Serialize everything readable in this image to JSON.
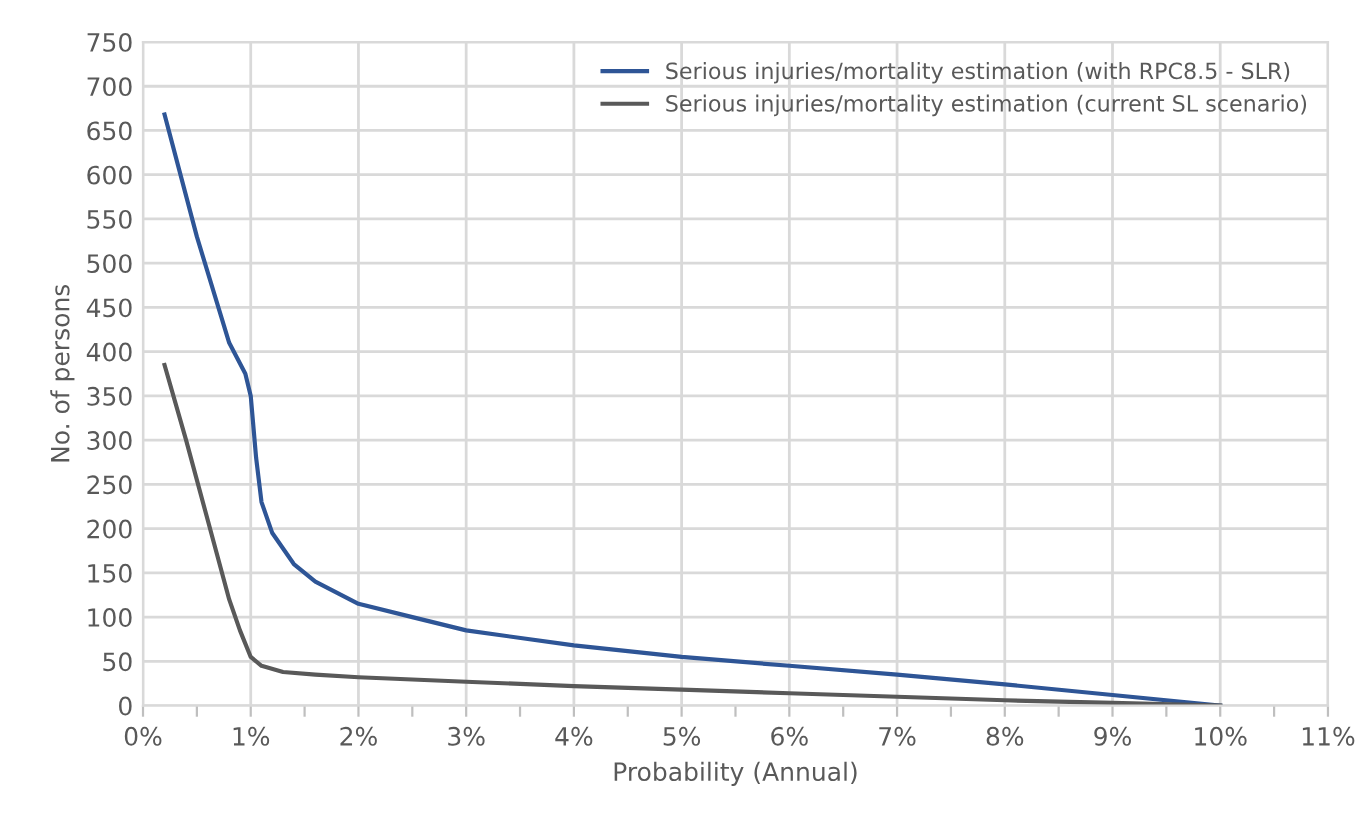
{
  "chart_data": {
    "type": "line",
    "xlabel": "Probability (Annual)",
    "ylabel": "No. of persons",
    "xlim": [
      0,
      11
    ],
    "ylim": [
      0,
      750
    ],
    "xticks": [
      {
        "value": 0,
        "label": "0%"
      },
      {
        "value": 0.5,
        "label": null
      },
      {
        "value": 1,
        "label": "1%"
      },
      {
        "value": 1.5,
        "label": null
      },
      {
        "value": 2,
        "label": "2%"
      },
      {
        "value": 2.5,
        "label": null
      },
      {
        "value": 3,
        "label": "3%"
      },
      {
        "value": 3.5,
        "label": null
      },
      {
        "value": 4,
        "label": "4%"
      },
      {
        "value": 4.5,
        "label": null
      },
      {
        "value": 5,
        "label": "5%"
      },
      {
        "value": 5.5,
        "label": null
      },
      {
        "value": 6,
        "label": "6%"
      },
      {
        "value": 6.5,
        "label": null
      },
      {
        "value": 7,
        "label": "7%"
      },
      {
        "value": 7.5,
        "label": null
      },
      {
        "value": 8,
        "label": "8%"
      },
      {
        "value": 8.5,
        "label": null
      },
      {
        "value": 9,
        "label": "9%"
      },
      {
        "value": 9.5,
        "label": null
      },
      {
        "value": 10,
        "label": "10%"
      },
      {
        "value": 10.5,
        "label": null
      },
      {
        "value": 11,
        "label": "11%"
      }
    ],
    "yticks": [
      0,
      50,
      100,
      150,
      200,
      250,
      300,
      350,
      400,
      450,
      500,
      550,
      600,
      650,
      700,
      750
    ],
    "grid": true,
    "legend": "top right",
    "marker": "none",
    "line_style": "solid",
    "series": [
      {
        "name": "Serious injuries/mortality estimation (with RPC8.5 - SLR)",
        "color": "#2e5596",
        "x": [
          0.2,
          0.5,
          0.8,
          0.95,
          1.0,
          1.05,
          1.1,
          1.2,
          1.4,
          1.6,
          2,
          2.5,
          3,
          4,
          5,
          6,
          7,
          8,
          9,
          10
        ],
        "values": [
          668,
          530,
          410,
          375,
          350,
          280,
          230,
          195,
          160,
          140,
          115,
          100,
          85,
          68,
          55,
          45,
          35,
          24,
          12,
          0
        ]
      },
      {
        "name": "Serious injuries/mortality estimation (current SL scenario)",
        "color": "#595959",
        "x": [
          0.2,
          0.4,
          0.6,
          0.8,
          0.9,
          1.0,
          1.1,
          1.3,
          1.6,
          2,
          3,
          4,
          5,
          6,
          7,
          8,
          9,
          10
        ],
        "values": [
          385,
          300,
          210,
          120,
          85,
          55,
          45,
          38,
          35,
          32,
          27,
          22,
          18,
          14,
          10,
          6,
          3,
          0
        ]
      }
    ]
  }
}
